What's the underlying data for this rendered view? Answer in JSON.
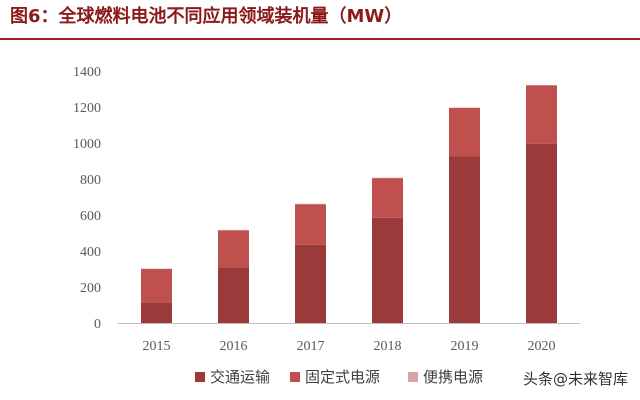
{
  "figure_title": "图6：全球燃料电池不同应用领域装机量（MW）",
  "watermark": "头条@未来智库",
  "colors": {
    "title": "#8b1a1a",
    "transport": "#9b3a3a",
    "stationary": "#c0504d",
    "portable": "#d9a3a3",
    "axis": "#bfbfbf"
  },
  "chart_data": {
    "type": "bar",
    "stacked": true,
    "title": "全球燃料电池不同应用领域装机量（MW）",
    "xlabel": "",
    "ylabel": "",
    "categories": [
      "2015",
      "2016",
      "2017",
      "2018",
      "2019",
      "2020"
    ],
    "series": [
      {
        "name": "交通运输",
        "values": [
          115,
          310,
          435,
          585,
          925,
          995
        ]
      },
      {
        "name": "固定式电源",
        "values": [
          185,
          205,
          225,
          220,
          270,
          325
        ]
      },
      {
        "name": "便携电源",
        "values": [
          2,
          2,
          2,
          2,
          2,
          2
        ]
      }
    ],
    "ylim": [
      0,
      1400
    ],
    "yticks": [
      "0",
      "200",
      "400",
      "600",
      "800",
      "1000",
      "1200",
      "1400"
    ],
    "grid": false,
    "legend_position": "bottom"
  }
}
